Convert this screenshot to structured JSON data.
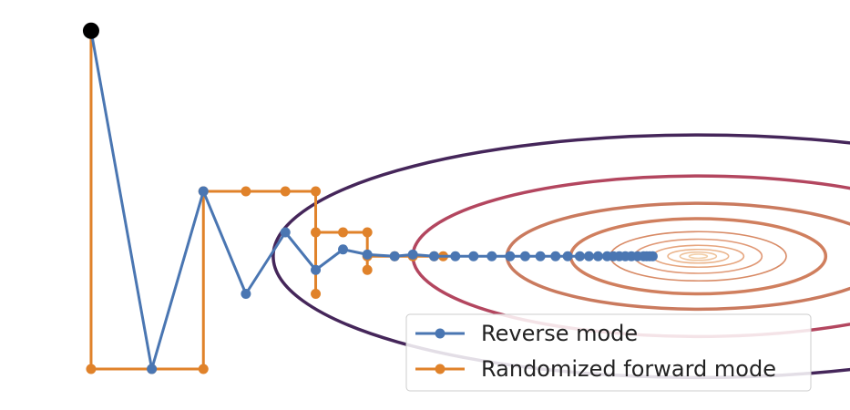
{
  "chart_data": {
    "type": "line",
    "title": "",
    "xlabel": "",
    "ylabel": "",
    "axes_visible": false,
    "grid": false,
    "xlim": [
      -2.3,
      0.5
    ],
    "ylim": [
      -0.45,
      0.75
    ],
    "start_point": {
      "x": -2.0,
      "y": 0.66,
      "color": "#000000"
    },
    "contours": {
      "center": {
        "x": 0.0,
        "y": 0.0
      },
      "ellipses": [
        {
          "rx": 0.03,
          "ry": 0.006,
          "color": "#f2cfa9"
        },
        {
          "rx": 0.06,
          "ry": 0.012,
          "color": "#efc39c"
        },
        {
          "rx": 0.1,
          "ry": 0.02,
          "color": "#ebb58d"
        },
        {
          "rx": 0.15,
          "ry": 0.032,
          "color": "#e6a57e"
        },
        {
          "rx": 0.21,
          "ry": 0.05,
          "color": "#e09875"
        },
        {
          "rx": 0.29,
          "ry": 0.072,
          "color": "#d88a65"
        },
        {
          "rx": 0.42,
          "ry": 0.11,
          "color": "#d07f5e"
        },
        {
          "rx": 0.63,
          "ry": 0.155,
          "color": "#ca7a5e"
        },
        {
          "rx": 0.94,
          "ry": 0.235,
          "color": "#b3465f"
        },
        {
          "rx": 1.4,
          "ry": 0.355,
          "color": "#45265a"
        }
      ]
    },
    "series": [
      {
        "name": "Reverse mode",
        "color": "#4a76b2",
        "points": [
          [
            -2.0,
            0.66
          ],
          [
            -1.8,
            -0.33
          ],
          [
            -1.63,
            0.19
          ],
          [
            -1.49,
            -0.11
          ],
          [
            -1.36,
            0.07
          ],
          [
            -1.26,
            -0.04
          ],
          [
            -1.17,
            0.02
          ],
          [
            -1.09,
            0.005
          ],
          [
            -1.0,
            0.0
          ],
          [
            -0.94,
            0.005
          ],
          [
            -0.87,
            0.0
          ],
          [
            -0.8,
            0.0
          ],
          [
            -0.74,
            0.0
          ],
          [
            -0.68,
            0.0
          ],
          [
            -0.62,
            0.0
          ],
          [
            -0.57,
            0.0
          ],
          [
            -0.52,
            0.0
          ],
          [
            -0.47,
            0.0
          ],
          [
            -0.43,
            0.0
          ],
          [
            -0.39,
            0.0
          ],
          [
            -0.36,
            0.0
          ],
          [
            -0.33,
            0.0
          ],
          [
            -0.3,
            0.0
          ],
          [
            -0.28,
            0.0
          ],
          [
            -0.26,
            0.0
          ],
          [
            -0.24,
            0.0
          ],
          [
            -0.22,
            0.0
          ],
          [
            -0.2,
            0.0
          ],
          [
            -0.18,
            0.0
          ],
          [
            -0.17,
            0.0
          ],
          [
            -0.16,
            0.0
          ],
          [
            -0.15,
            0.0
          ]
        ]
      },
      {
        "name": "Randomized forward mode",
        "color": "#e0822a",
        "points": [
          [
            -2.0,
            0.66
          ],
          [
            -2.0,
            -0.33
          ],
          [
            -1.8,
            -0.33
          ],
          [
            -1.63,
            -0.33
          ],
          [
            -1.63,
            0.19
          ],
          [
            -1.49,
            0.19
          ],
          [
            -1.36,
            0.19
          ],
          [
            -1.26,
            0.19
          ],
          [
            -1.26,
            -0.11
          ],
          [
            -1.26,
            0.07
          ],
          [
            -1.17,
            0.07
          ],
          [
            -1.09,
            0.07
          ],
          [
            -1.09,
            -0.04
          ],
          [
            -1.09,
            0.0
          ],
          [
            -1.0,
            0.0
          ],
          [
            -0.94,
            0.0
          ],
          [
            -0.87,
            0.0
          ],
          [
            -0.84,
            0.0
          ]
        ]
      }
    ],
    "legend": {
      "position": "lower-right",
      "entries": [
        "Reverse mode",
        "Randomized forward mode"
      ]
    }
  }
}
